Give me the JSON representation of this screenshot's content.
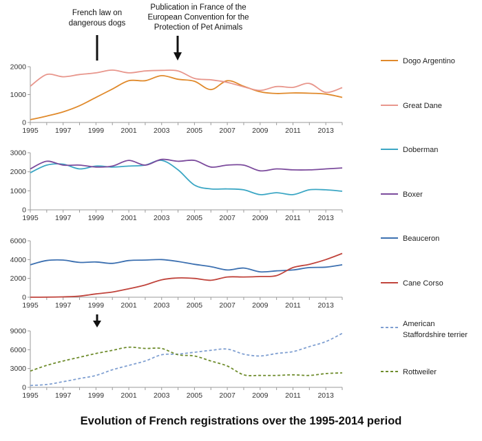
{
  "title": "Evolution of French registrations over the 1995-2014 period",
  "annotations": {
    "law": [
      "French law on",
      "dangerous dogs"
    ],
    "convention": [
      "Publication in France of the",
      "European Convention for the",
      "Protection of Pet Animals"
    ]
  },
  "chart_data": [
    {
      "type": "line",
      "x": [
        1995,
        1996,
        1997,
        1998,
        1999,
        2000,
        2001,
        2002,
        2003,
        2004,
        2005,
        2006,
        2007,
        2008,
        2009,
        2010,
        2011,
        2012,
        2013,
        2014
      ],
      "xticks": [
        "1995",
        "1997",
        "1999",
        "2001",
        "2003",
        "2005",
        "2007",
        "2009",
        "2011",
        "2013"
      ],
      "yticks": [
        "0",
        "1000",
        "2000"
      ],
      "ylim": [
        0,
        2000
      ],
      "series": [
        {
          "name": "Dogo Argentino",
          "color": "#e0892a",
          "dash": "",
          "values": [
            100,
            230,
            380,
            600,
            900,
            1200,
            1500,
            1500,
            1680,
            1550,
            1480,
            1180,
            1500,
            1300,
            1100,
            1040,
            1060,
            1050,
            1020,
            900
          ]
        },
        {
          "name": "Great Dane",
          "color": "#e8968c",
          "dash": "",
          "values": [
            1300,
            1720,
            1640,
            1720,
            1780,
            1880,
            1780,
            1850,
            1870,
            1850,
            1580,
            1530,
            1440,
            1280,
            1150,
            1290,
            1260,
            1400,
            1080,
            1250
          ]
        }
      ]
    },
    {
      "type": "line",
      "x": [
        1995,
        1996,
        1997,
        1998,
        1999,
        2000,
        2001,
        2002,
        2003,
        2004,
        2005,
        2006,
        2007,
        2008,
        2009,
        2010,
        2011,
        2012,
        2013,
        2014
      ],
      "xticks": [
        "1995",
        "1997",
        "1999",
        "2001",
        "2003",
        "2005",
        "2007",
        "2009",
        "2011",
        "2013"
      ],
      "yticks": [
        "0",
        "1000",
        "2000",
        "3000"
      ],
      "ylim": [
        0,
        3000
      ],
      "series": [
        {
          "name": "Doberman",
          "color": "#3aa6c4",
          "dash": "",
          "values": [
            1950,
            2350,
            2400,
            2150,
            2300,
            2250,
            2300,
            2350,
            2600,
            2100,
            1300,
            1100,
            1100,
            1050,
            800,
            900,
            800,
            1050,
            1050,
            980
          ]
        },
        {
          "name": "Boxer",
          "color": "#7b4a9c",
          "dash": "",
          "values": [
            2150,
            2550,
            2350,
            2350,
            2250,
            2300,
            2600,
            2350,
            2650,
            2550,
            2600,
            2250,
            2350,
            2350,
            2050,
            2150,
            2100,
            2100,
            2150,
            2200
          ]
        }
      ]
    },
    {
      "type": "line",
      "x": [
        1995,
        1996,
        1997,
        1998,
        1999,
        2000,
        2001,
        2002,
        2003,
        2004,
        2005,
        2006,
        2007,
        2008,
        2009,
        2010,
        2011,
        2012,
        2013,
        2014
      ],
      "xticks": [
        "1995",
        "1997",
        "1999",
        "2001",
        "2003",
        "2005",
        "2007",
        "2009",
        "2011",
        "2013"
      ],
      "yticks": [
        "0",
        "2000",
        "4000",
        "6000"
      ],
      "ylim": [
        0,
        6000
      ],
      "series": [
        {
          "name": "Beauceron",
          "color": "#3b6fb0",
          "dash": "",
          "values": [
            3450,
            3900,
            3950,
            3700,
            3750,
            3600,
            3900,
            3950,
            4000,
            3800,
            3500,
            3250,
            2900,
            3100,
            2700,
            2800,
            2900,
            3150,
            3200,
            3450
          ]
        },
        {
          "name": "Cane Corso",
          "color": "#c0433b",
          "dash": "",
          "values": [
            0,
            10,
            40,
            120,
            350,
            550,
            900,
            1300,
            1850,
            2050,
            2000,
            1800,
            2150,
            2150,
            2200,
            2300,
            3150,
            3500,
            4000,
            4650
          ]
        }
      ]
    },
    {
      "type": "line",
      "x": [
        1995,
        1996,
        1997,
        1998,
        1999,
        2000,
        2001,
        2002,
        2003,
        2004,
        2005,
        2006,
        2007,
        2008,
        2009,
        2010,
        2011,
        2012,
        2013,
        2014
      ],
      "xticks": [
        "1995",
        "1997",
        "1999",
        "2001",
        "2003",
        "2005",
        "2007",
        "2009",
        "2011",
        "2013"
      ],
      "yticks": [
        "0",
        "3000",
        "6000",
        "9000"
      ],
      "ylim": [
        0,
        9000
      ],
      "series": [
        {
          "name": "American Staffordshire terrier",
          "color": "#7f9fd1",
          "dash": "4,3",
          "values": [
            300,
            450,
            900,
            1400,
            1900,
            2800,
            3500,
            4200,
            5200,
            5300,
            5600,
            5900,
            6100,
            5300,
            5000,
            5400,
            5700,
            6500,
            7300,
            8600
          ]
        },
        {
          "name": "Rottweiler",
          "color": "#6e8c2c",
          "dash": "4,3",
          "values": [
            2600,
            3500,
            4200,
            4800,
            5400,
            5900,
            6400,
            6200,
            6200,
            5200,
            5000,
            4200,
            3400,
            2000,
            1900,
            1900,
            2000,
            1900,
            2200,
            2300
          ]
        }
      ]
    }
  ],
  "legend": [
    {
      "label": [
        "Dogo Argentino"
      ],
      "color": "#e0892a",
      "dash": ""
    },
    {
      "label": [
        "Great Dane"
      ],
      "color": "#e8968c",
      "dash": ""
    },
    {
      "label": [
        "Doberman"
      ],
      "color": "#3aa6c4",
      "dash": ""
    },
    {
      "label": [
        "Boxer"
      ],
      "color": "#7b4a9c",
      "dash": ""
    },
    {
      "label": [
        "Beauceron"
      ],
      "color": "#3b6fb0",
      "dash": ""
    },
    {
      "label": [
        "Cane Corso"
      ],
      "color": "#c0433b",
      "dash": ""
    },
    {
      "label": [
        "American",
        "Staffordshire terrier"
      ],
      "color": "#7f9fd1",
      "dash": "4,3"
    },
    {
      "label": [
        "Rottweiler"
      ],
      "color": "#6e8c2c",
      "dash": "4,3"
    }
  ]
}
